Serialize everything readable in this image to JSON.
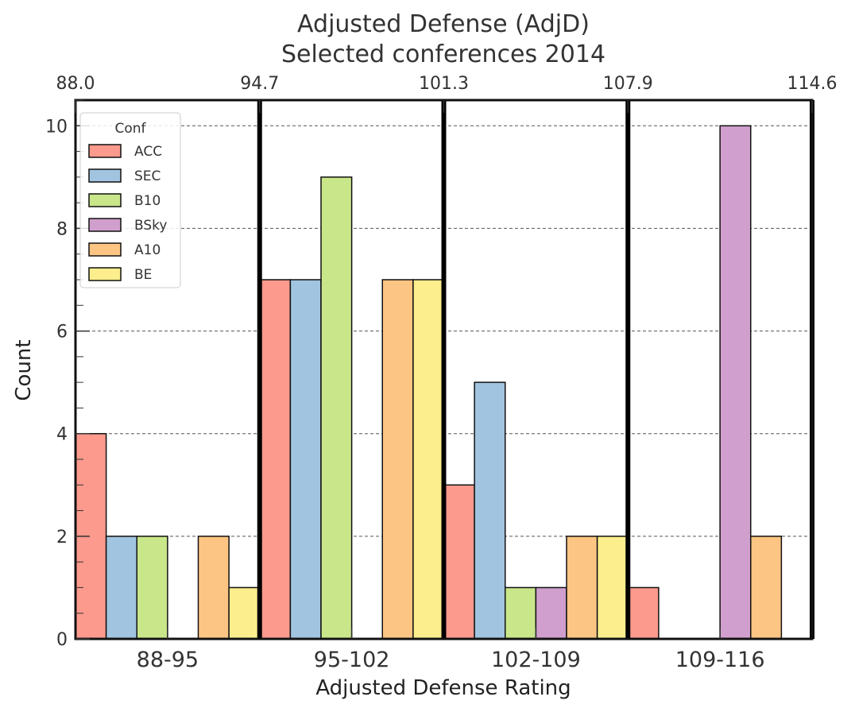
{
  "chart_data": {
    "type": "bar",
    "title": "Adjusted Defense (AdjD)",
    "subtitle": "Selected conferences 2014",
    "xlabel": "Adjusted Defense Rating",
    "ylabel": "Count",
    "categories": [
      "88-95",
      "95-102",
      "102-109",
      "109-116"
    ],
    "top_axis_ticks": [
      "88.0",
      "94.7",
      "101.3",
      "107.9",
      "114.6"
    ],
    "y_ticks": [
      "0",
      "2",
      "4",
      "6",
      "8",
      "10"
    ],
    "ylim": [
      0,
      10.5
    ],
    "grid": "horizontal dashed",
    "legend": {
      "title": "Conf",
      "placement": "top-left"
    },
    "series": [
      {
        "name": "ACC",
        "color": "#fb9a8d",
        "values": [
          4,
          7,
          3,
          1
        ]
      },
      {
        "name": "SEC",
        "color": "#a1c4e0",
        "values": [
          2,
          7,
          5,
          0
        ]
      },
      {
        "name": "B10",
        "color": "#c9e68b",
        "values": [
          2,
          9,
          1,
          0
        ]
      },
      {
        "name": "BSky",
        "color": "#d09fcd",
        "values": [
          0,
          0,
          1,
          10
        ]
      },
      {
        "name": "A10",
        "color": "#fdc584",
        "values": [
          2,
          7,
          2,
          2
        ]
      },
      {
        "name": "BE",
        "color": "#fcee8d",
        "values": [
          1,
          7,
          2,
          0
        ]
      }
    ]
  }
}
